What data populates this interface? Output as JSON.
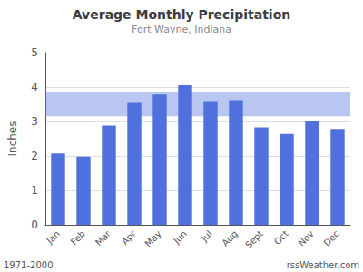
{
  "chart_data": {
    "type": "bar",
    "title": "Average Monthly Precipitation",
    "subtitle": "Fort Wayne, Indiana",
    "ylabel": "Inches",
    "categories": [
      "Jan",
      "Feb",
      "Mar",
      "Apr",
      "May",
      "Jun",
      "Jul",
      "Aug",
      "Sept",
      "Oct",
      "Nov",
      "Dec"
    ],
    "values": [
      2.07,
      1.98,
      2.88,
      3.54,
      3.78,
      4.05,
      3.59,
      3.62,
      2.83,
      2.64,
      3.02,
      2.78
    ],
    "band": [
      3.15,
      3.85
    ],
    "ylim": [
      0.0,
      5.0
    ],
    "yticks": [
      0.0,
      1.0,
      2.0,
      3.0,
      4.0,
      5.0
    ],
    "grid": true,
    "annotations": [
      "1971-2000",
      "rssWeather.com"
    ]
  }
}
